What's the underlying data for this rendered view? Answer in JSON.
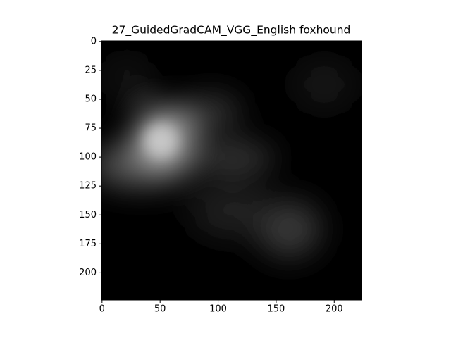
{
  "chart_data": {
    "type": "image",
    "title": "27_GuidedGradCAM_VGG_English foxhound",
    "xlim": [
      -0.5,
      223.5
    ],
    "ylim": [
      223.5,
      -0.5
    ],
    "xticks": [
      0,
      50,
      100,
      150,
      200
    ],
    "yticks": [
      0,
      25,
      50,
      75,
      100,
      125,
      150,
      175,
      200
    ]
  }
}
